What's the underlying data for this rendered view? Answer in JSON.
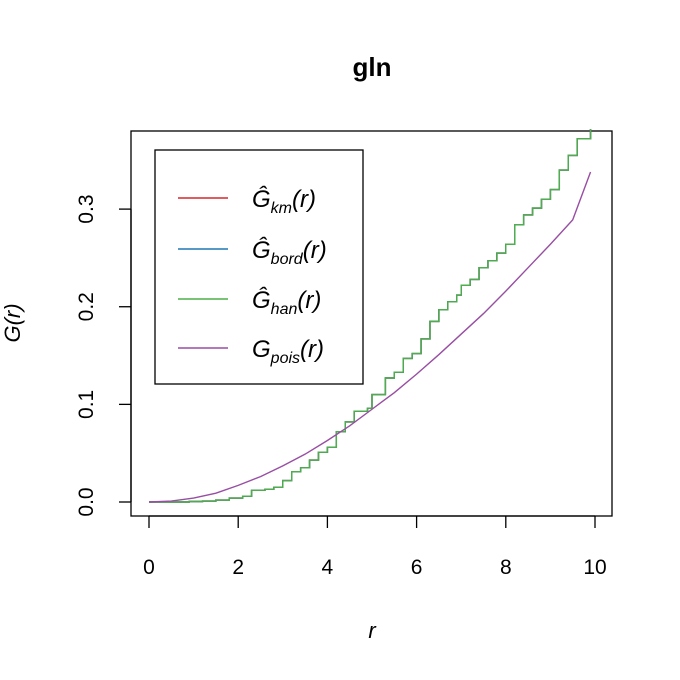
{
  "chart_data": {
    "type": "line",
    "title": "gln",
    "xlabel": "r",
    "ylabel": "G(r)",
    "xlim": [
      0,
      10
    ],
    "ylim": [
      0,
      0.38
    ],
    "x_ticks": [
      0,
      2,
      4,
      6,
      8,
      10
    ],
    "y_ticks": [
      0.0,
      0.1,
      0.2,
      0.3
    ],
    "x_tick_labels": [
      "0",
      "2",
      "4",
      "6",
      "8",
      "10"
    ],
    "y_tick_labels": [
      "0.0",
      "0.1",
      "0.2",
      "0.3"
    ],
    "legend_position": "top-left",
    "grid": false,
    "legend": [
      {
        "symbol": "Ĝ",
        "sub": "km",
        "suffix": "(r)",
        "color": "#d62728"
      },
      {
        "symbol": "Ĝ",
        "sub": "bord",
        "suffix": "(r)",
        "color": "#1f77b4"
      },
      {
        "symbol": "Ĝ",
        "sub": "han",
        "suffix": "(r)",
        "color": "#4daf4a"
      },
      {
        "symbol": "G",
        "sub": "pois",
        "suffix": "(r)",
        "color": "#984ea3"
      }
    ],
    "series": [
      {
        "name": "Ĝkm(r)",
        "color": "#d62728",
        "kind": "step",
        "x": [
          0,
          0.3,
          0.6,
          0.9,
          1.2,
          1.5,
          1.8,
          2.1,
          2.3,
          2.6,
          2.8,
          3.0,
          3.2,
          3.4,
          3.6,
          3.8,
          4.0,
          4.2,
          4.4,
          4.6,
          4.9,
          5.0,
          5.3,
          5.5,
          5.7,
          5.9,
          6.1,
          6.3,
          6.5,
          6.7,
          6.9,
          7.0,
          7.2,
          7.4,
          7.6,
          7.8,
          8.0,
          8.2,
          8.4,
          8.6,
          8.8,
          9.0,
          9.2,
          9.4,
          9.6,
          9.9
        ],
        "y": [
          0.0,
          0.0,
          0.0,
          0.0005,
          0.001,
          0.002,
          0.004,
          0.006,
          0.012,
          0.013,
          0.015,
          0.022,
          0.031,
          0.035,
          0.043,
          0.051,
          0.056,
          0.072,
          0.082,
          0.093,
          0.096,
          0.11,
          0.127,
          0.133,
          0.147,
          0.152,
          0.167,
          0.185,
          0.197,
          0.205,
          0.212,
          0.222,
          0.228,
          0.24,
          0.247,
          0.255,
          0.264,
          0.284,
          0.294,
          0.301,
          0.31,
          0.32,
          0.34,
          0.355,
          0.372,
          0.382
        ]
      },
      {
        "name": "Ĝbord(r)",
        "color": "#1f77b4",
        "kind": "step",
        "x": [
          0,
          0.3,
          0.6,
          0.9,
          1.2,
          1.5,
          1.8,
          2.1,
          2.3,
          2.6,
          2.8,
          3.0,
          3.2,
          3.4,
          3.6,
          3.8,
          4.0,
          4.2,
          4.4,
          4.6,
          4.9,
          5.0,
          5.3,
          5.5,
          5.7,
          5.9,
          6.1,
          6.3,
          6.5,
          6.7,
          6.9,
          7.0,
          7.2,
          7.4,
          7.6,
          7.8,
          8.0,
          8.2,
          8.4,
          8.6,
          8.8,
          9.0,
          9.2,
          9.4,
          9.6,
          9.9
        ],
        "y": [
          0.0,
          0.0,
          0.0,
          0.0005,
          0.001,
          0.002,
          0.004,
          0.006,
          0.012,
          0.013,
          0.015,
          0.022,
          0.031,
          0.035,
          0.043,
          0.051,
          0.056,
          0.072,
          0.082,
          0.093,
          0.096,
          0.11,
          0.127,
          0.133,
          0.147,
          0.152,
          0.167,
          0.185,
          0.197,
          0.205,
          0.212,
          0.222,
          0.228,
          0.24,
          0.247,
          0.255,
          0.264,
          0.284,
          0.294,
          0.301,
          0.31,
          0.32,
          0.34,
          0.355,
          0.372,
          0.382
        ]
      },
      {
        "name": "Ĝhan(r)",
        "color": "#4daf4a",
        "kind": "step",
        "x": [
          0,
          0.3,
          0.6,
          0.9,
          1.2,
          1.5,
          1.8,
          2.1,
          2.3,
          2.6,
          2.8,
          3.0,
          3.2,
          3.4,
          3.6,
          3.8,
          4.0,
          4.2,
          4.4,
          4.6,
          4.9,
          5.0,
          5.3,
          5.5,
          5.7,
          5.9,
          6.1,
          6.3,
          6.5,
          6.7,
          6.9,
          7.0,
          7.2,
          7.4,
          7.6,
          7.8,
          8.0,
          8.2,
          8.4,
          8.6,
          8.8,
          9.0,
          9.2,
          9.4,
          9.6,
          9.9
        ],
        "y": [
          0.0,
          0.0,
          0.0,
          0.0005,
          0.001,
          0.002,
          0.004,
          0.006,
          0.012,
          0.013,
          0.015,
          0.022,
          0.031,
          0.035,
          0.043,
          0.051,
          0.056,
          0.072,
          0.082,
          0.093,
          0.096,
          0.11,
          0.127,
          0.133,
          0.147,
          0.152,
          0.167,
          0.185,
          0.197,
          0.205,
          0.212,
          0.222,
          0.228,
          0.24,
          0.247,
          0.255,
          0.264,
          0.284,
          0.294,
          0.301,
          0.31,
          0.32,
          0.34,
          0.355,
          0.372,
          0.382
        ]
      },
      {
        "name": "Gpois(r)",
        "color": "#984ea3",
        "kind": "smooth",
        "x": [
          0,
          0.5,
          1,
          1.5,
          2,
          2.5,
          3,
          3.5,
          4,
          4.5,
          5,
          5.5,
          6,
          6.5,
          7,
          7.5,
          8,
          8.5,
          9,
          9.5,
          9.9
        ],
        "y": [
          0.0,
          0.001,
          0.004,
          0.009,
          0.017,
          0.026,
          0.037,
          0.049,
          0.063,
          0.078,
          0.095,
          0.112,
          0.131,
          0.151,
          0.172,
          0.193,
          0.216,
          0.24,
          0.264,
          0.289,
          0.338
        ]
      }
    ]
  }
}
